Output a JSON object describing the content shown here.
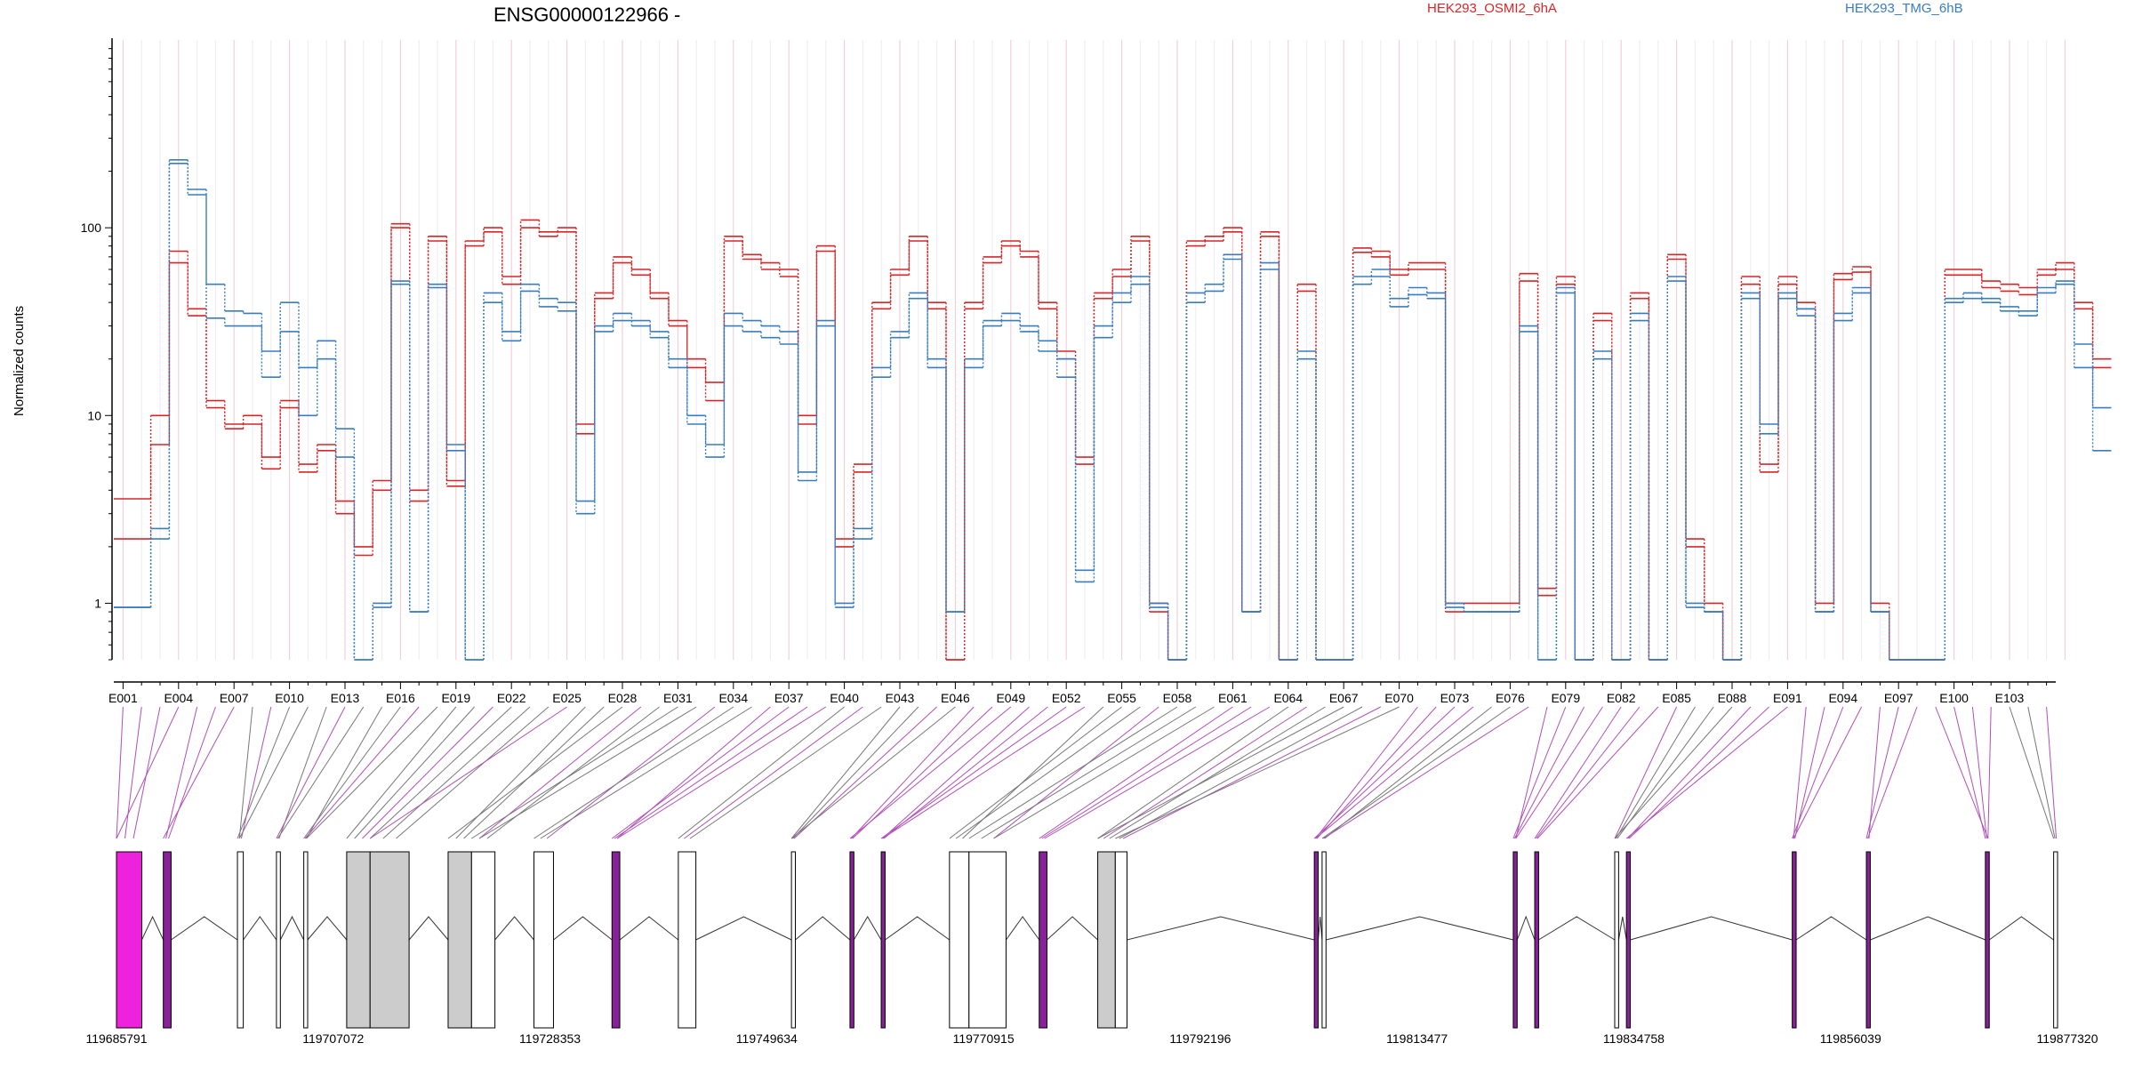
{
  "chart_data": {
    "type": "line",
    "title": "ENSG00000122966 -",
    "ylabel": "Normalized counts",
    "yscale": "log",
    "ylim": [
      0.5,
      1000
    ],
    "yticks": [
      1,
      10,
      100
    ],
    "ytick_labels": [
      "1",
      "10",
      "100"
    ],
    "legend": {
      "placement": "top",
      "entries": [
        "HEK293_OSMI2_6hA",
        "HEK293_TMG_6hB"
      ]
    },
    "colors": {
      "OSMI2": "#d62728",
      "TMG": "#3a7dbf",
      "exon_pink": "#ee22dd",
      "exon_purple": "#882299",
      "exon_gray": "#cccccc"
    },
    "exon_ticks": [
      "E001",
      "E004",
      "E007",
      "E010",
      "E013",
      "E016",
      "E019",
      "E022",
      "E025",
      "E028",
      "E031",
      "E034",
      "E037",
      "E040",
      "E043",
      "E046",
      "E049",
      "E052",
      "E055",
      "E058",
      "E061",
      "E064",
      "E067",
      "E070",
      "E073",
      "E076",
      "E079",
      "E082",
      "E085",
      "E088",
      "E091",
      "E094",
      "E097",
      "E100",
      "E103"
    ],
    "n_exons": 105,
    "series": [
      {
        "name": "HEK293_OSMI2_6hA",
        "group": "OSMI2",
        "values": [
          3.6,
          3.6,
          10,
          75,
          37,
          12,
          9,
          10,
          6,
          12,
          5.5,
          7,
          3.5,
          2,
          4.5,
          105,
          4,
          90,
          4.5,
          85,
          100,
          55,
          110,
          95,
          100,
          9,
          45,
          70,
          60,
          45,
          32,
          20,
          15,
          90,
          72,
          65,
          60,
          10,
          80,
          2.2,
          5.5,
          40,
          60,
          90,
          40,
          0.5,
          40,
          70,
          85,
          75,
          40,
          22,
          6,
          45,
          60,
          90,
          1,
          0.5,
          85,
          90,
          100,
          0.9,
          95,
          0.5,
          50,
          0.5,
          0.5,
          78,
          75,
          60,
          65,
          65,
          1,
          1,
          1,
          1,
          57,
          1.2,
          55,
          0.5,
          35,
          0.5,
          45,
          0.5,
          72,
          2.2,
          1,
          0.5,
          55,
          5.5,
          55,
          40,
          1,
          57,
          62,
          1,
          0.5,
          0.5,
          0.5,
          60,
          60,
          52,
          50,
          48,
          60,
          65,
          40,
          20
        ]
      },
      {
        "name": "HEK293_OSMI2_6hA",
        "group": "OSMI2",
        "values": [
          2.2,
          2.2,
          7,
          65,
          34,
          11,
          8.5,
          9,
          5.2,
          11,
          5,
          6.5,
          3,
          1.8,
          4,
          100,
          3.5,
          85,
          4.2,
          80,
          95,
          50,
          100,
          90,
          95,
          8,
          42,
          65,
          56,
          42,
          30,
          18,
          12,
          85,
          68,
          60,
          55,
          9,
          75,
          2,
          5,
          37,
          56,
          85,
          37,
          0.5,
          37,
          65,
          80,
          70,
          37,
          20,
          5.5,
          42,
          55,
          85,
          0.9,
          0.5,
          80,
          85,
          95,
          0.9,
          90,
          0.5,
          46,
          0.5,
          0.5,
          74,
          70,
          56,
          60,
          60,
          0.9,
          0.9,
          0.9,
          0.9,
          52,
          1.1,
          50,
          0.5,
          32,
          0.5,
          42,
          0.5,
          68,
          2,
          0.9,
          0.5,
          50,
          5,
          50,
          37,
          0.9,
          53,
          58,
          0.9,
          0.5,
          0.5,
          0.5,
          56,
          56,
          48,
          46,
          44,
          56,
          60,
          37,
          18
        ]
      },
      {
        "name": "HEK293_TMG_6hB",
        "group": "TMG",
        "values": [
          0.95,
          0.95,
          2.5,
          230,
          160,
          50,
          36,
          35,
          22,
          40,
          18,
          25,
          8.5,
          0.5,
          1,
          52,
          0.9,
          50,
          7,
          0.5,
          45,
          28,
          50,
          42,
          40,
          3.5,
          30,
          35,
          32,
          28,
          20,
          10,
          7,
          35,
          32,
          30,
          28,
          5,
          32,
          1,
          2.5,
          18,
          28,
          45,
          20,
          0.9,
          20,
          32,
          35,
          30,
          25,
          20,
          1.5,
          30,
          45,
          55,
          1,
          0.5,
          45,
          50,
          72,
          0.9,
          65,
          0.5,
          22,
          0.5,
          0.5,
          55,
          60,
          42,
          48,
          45,
          1,
          0.9,
          0.9,
          0.9,
          30,
          0.5,
          48,
          0.5,
          22,
          0.5,
          35,
          0.5,
          55,
          1,
          0.9,
          0.5,
          45,
          9,
          45,
          37,
          0.9,
          35,
          48,
          0.9,
          0.5,
          0.5,
          0.5,
          42,
          45,
          42,
          38,
          36,
          48,
          52,
          24,
          11
        ]
      },
      {
        "name": "HEK293_TMG_6hB",
        "group": "TMG",
        "values": [
          0.95,
          0.95,
          2.2,
          220,
          150,
          33,
          30,
          30,
          16,
          28,
          10,
          20,
          6,
          0.5,
          0.95,
          50,
          0.9,
          48,
          6.5,
          0.5,
          40,
          25,
          46,
          38,
          36,
          3,
          28,
          32,
          30,
          26,
          18,
          9,
          6,
          30,
          28,
          26,
          24,
          4.5,
          30,
          0.95,
          2.2,
          16,
          26,
          42,
          18,
          0.9,
          18,
          30,
          32,
          28,
          22,
          16,
          1.3,
          26,
          40,
          50,
          0.95,
          0.5,
          40,
          46,
          68,
          0.9,
          60,
          0.5,
          20,
          0.5,
          0.5,
          50,
          55,
          38,
          44,
          42,
          0.95,
          0.9,
          0.9,
          0.9,
          28,
          0.5,
          45,
          0.5,
          20,
          0.5,
          32,
          0.5,
          52,
          0.95,
          0.9,
          0.5,
          42,
          8,
          42,
          34,
          0.9,
          32,
          45,
          0.9,
          0.5,
          0.5,
          0.5,
          40,
          42,
          40,
          36,
          34,
          45,
          50,
          18,
          6.5
        ]
      }
    ],
    "genome_axis": {
      "start": 119685791,
      "end": 119877320,
      "ticks": [
        "119685791",
        "119707072",
        "119728353",
        "119749634",
        "119770915",
        "119792196",
        "119813477",
        "119834758",
        "119856039",
        "119877320"
      ]
    }
  }
}
